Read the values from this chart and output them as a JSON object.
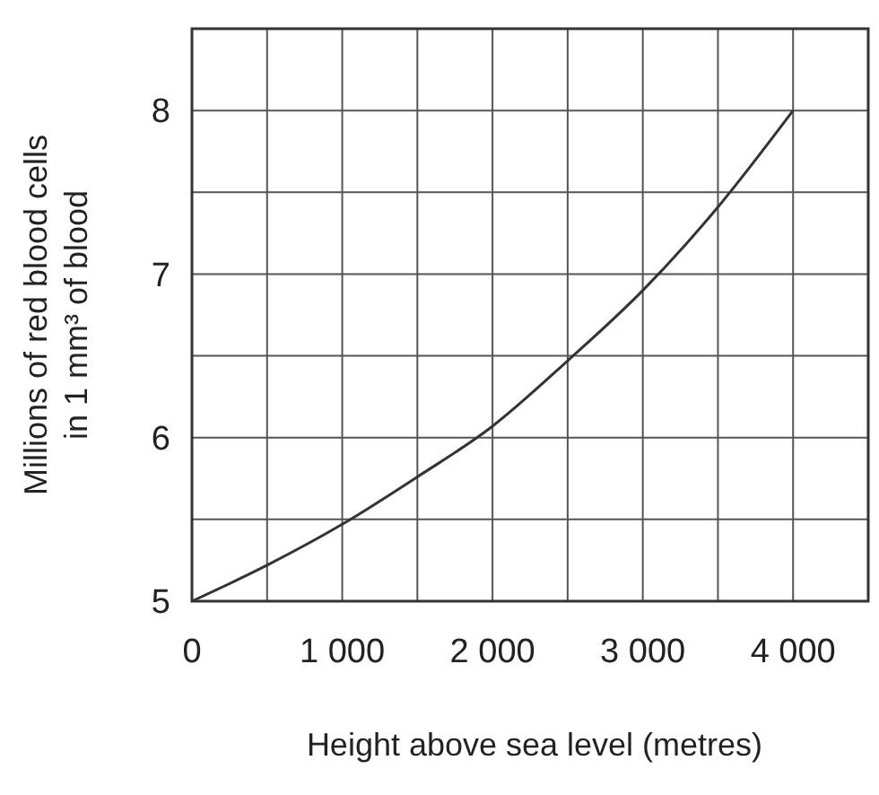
{
  "chart_data": {
    "type": "line",
    "xlabel": "Height above sea level (metres)",
    "ylabel": "Millions of red blood cells\nin 1 mm³ of blood",
    "x": [
      0,
      500,
      1000,
      1500,
      2000,
      2500,
      3000,
      3500,
      4000
    ],
    "series": [
      {
        "color": "#333333",
        "values": [
          5,
          5.22,
          5.47,
          5.76,
          6.07,
          6.47,
          6.9,
          7.41,
          8
        ]
      }
    ],
    "xlim": [
      0,
      4500
    ],
    "ylim": [
      5,
      8.5
    ],
    "xticks": [
      0,
      {
        "value": 500,
        "label": null
      },
      {
        "value": 1000,
        "label": "1 000"
      },
      {
        "value": 1500,
        "label": null
      },
      {
        "value": 2000,
        "label": "2 000"
      },
      {
        "value": 2500,
        "label": null
      },
      {
        "value": 3000,
        "label": "3 000"
      },
      {
        "value": 3500,
        "label": null
      },
      {
        "value": 4000,
        "label": "4 000"
      }
    ],
    "yticks": [
      5,
      {
        "value": 5.5,
        "label": null
      },
      6,
      {
        "value": 6.5,
        "label": null
      },
      7,
      {
        "value": 7.5,
        "label": null
      },
      8
    ],
    "grid": true,
    "marker": "none",
    "line_style": "solid"
  }
}
